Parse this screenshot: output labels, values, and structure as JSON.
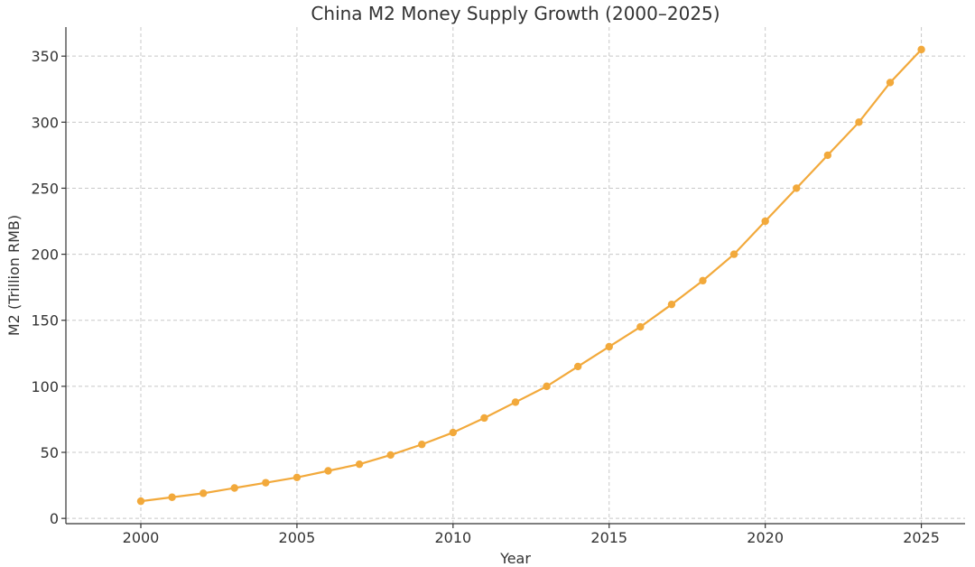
{
  "chart_data": {
    "type": "line",
    "title": "China M2 Money Supply Growth (2000–2025)",
    "xlabel": "Year",
    "ylabel": "M2 (Trillion RMB)",
    "xlim": [
      1997.6,
      2026.4
    ],
    "ylim": [
      -4,
      372
    ],
    "xticks": [
      2000,
      2005,
      2010,
      2015,
      2020,
      2025
    ],
    "yticks": [
      0,
      50,
      100,
      150,
      200,
      250,
      300,
      350
    ],
    "grid": true,
    "color": "#f2a93b",
    "series": [
      {
        "name": "M2",
        "x": [
          2000,
          2001,
          2002,
          2003,
          2004,
          2005,
          2006,
          2007,
          2008,
          2009,
          2010,
          2011,
          2012,
          2013,
          2014,
          2015,
          2016,
          2017,
          2018,
          2019,
          2020,
          2021,
          2022,
          2023,
          2024,
          2025
        ],
        "values": [
          13,
          16,
          19,
          23,
          27,
          31,
          36,
          41,
          48,
          56,
          65,
          76,
          88,
          100,
          115,
          130,
          145,
          162,
          180,
          200,
          225,
          250,
          275,
          300,
          330,
          355
        ]
      }
    ]
  }
}
